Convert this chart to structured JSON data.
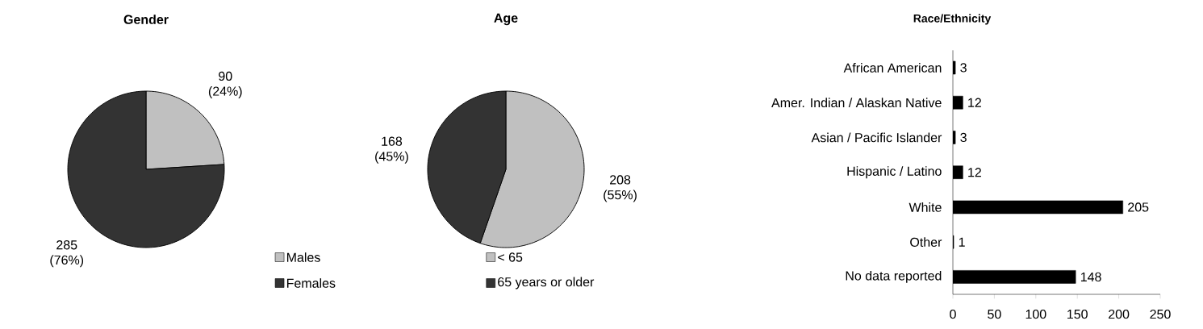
{
  "chart_data": [
    {
      "type": "pie",
      "title": "Gender",
      "categories": [
        "Males",
        "Females"
      ],
      "values": [
        90,
        285
      ],
      "colors": [
        "#c0c0c0",
        "#333333"
      ],
      "value_labels": [
        "90 (24%)",
        "285 (76%)"
      ],
      "legend": "bottom right"
    },
    {
      "type": "pie",
      "title": "Age",
      "categories": [
        "< 65",
        "65 years or older"
      ],
      "values": [
        208,
        168
      ],
      "colors": [
        "#c0c0c0",
        "#333333"
      ],
      "value_labels": [
        "208 (55%)",
        "168 (45%)"
      ],
      "legend": "bottom"
    },
    {
      "type": "bar",
      "title": "Race/Ethnicity",
      "orientation": "horizontal",
      "categories": [
        "African American",
        "Amer. Indian / Alaskan Native",
        "Asian / Pacific Islander",
        "Hispanic / Latino",
        "White",
        "Other",
        "No data reported"
      ],
      "values": [
        3,
        12,
        3,
        12,
        205,
        1,
        148
      ],
      "color": "#000000",
      "xlim": [
        0,
        250
      ],
      "xticks": [
        0,
        50,
        100,
        150,
        200,
        250
      ],
      "data_labels": true
    }
  ]
}
